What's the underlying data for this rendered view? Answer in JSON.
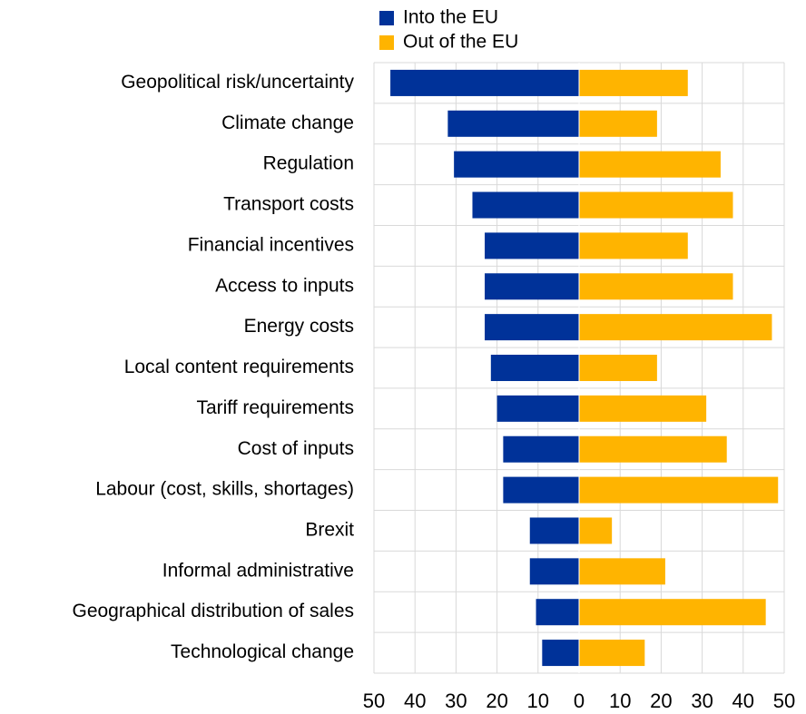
{
  "chart_data": {
    "type": "diverging-bar",
    "categories": [
      "Geopolitical risk/uncertainty",
      "Climate change",
      "Regulation",
      "Transport costs",
      "Financial incentives ",
      "Access to inputs",
      "Energy costs",
      "Local content requirements",
      "Tariff requirements ",
      "Cost of inputs",
      "Labour (cost, skills, shortages)",
      "Brexit",
      "Informal administrative",
      "Geographical distribution of sales ",
      "Technological change "
    ],
    "series": [
      {
        "name": "Into the EU",
        "color": "#003299",
        "values": [
          -46,
          -32,
          -30.5,
          -26,
          -23,
          -23,
          -23,
          -21.5,
          -20,
          -18.5,
          -18.5,
          -12,
          -12,
          -10.5,
          -9
        ]
      },
      {
        "name": "Out of the EU",
        "color": "#ffb400",
        "values": [
          26.5,
          19,
          34.5,
          37.5,
          26.5,
          37.5,
          47,
          19,
          31,
          36,
          48.5,
          8,
          21,
          45.5,
          16
        ]
      }
    ],
    "xlim": [
      -50,
      50
    ],
    "xticks": [
      {
        "value": -50,
        "label": "50"
      },
      {
        "value": -40,
        "label": "40"
      },
      {
        "value": -30,
        "label": "30"
      },
      {
        "value": -20,
        "label": "20"
      },
      {
        "value": -10,
        "label": "10"
      },
      0,
      10,
      20,
      30,
      40,
      50
    ],
    "grid": true
  }
}
